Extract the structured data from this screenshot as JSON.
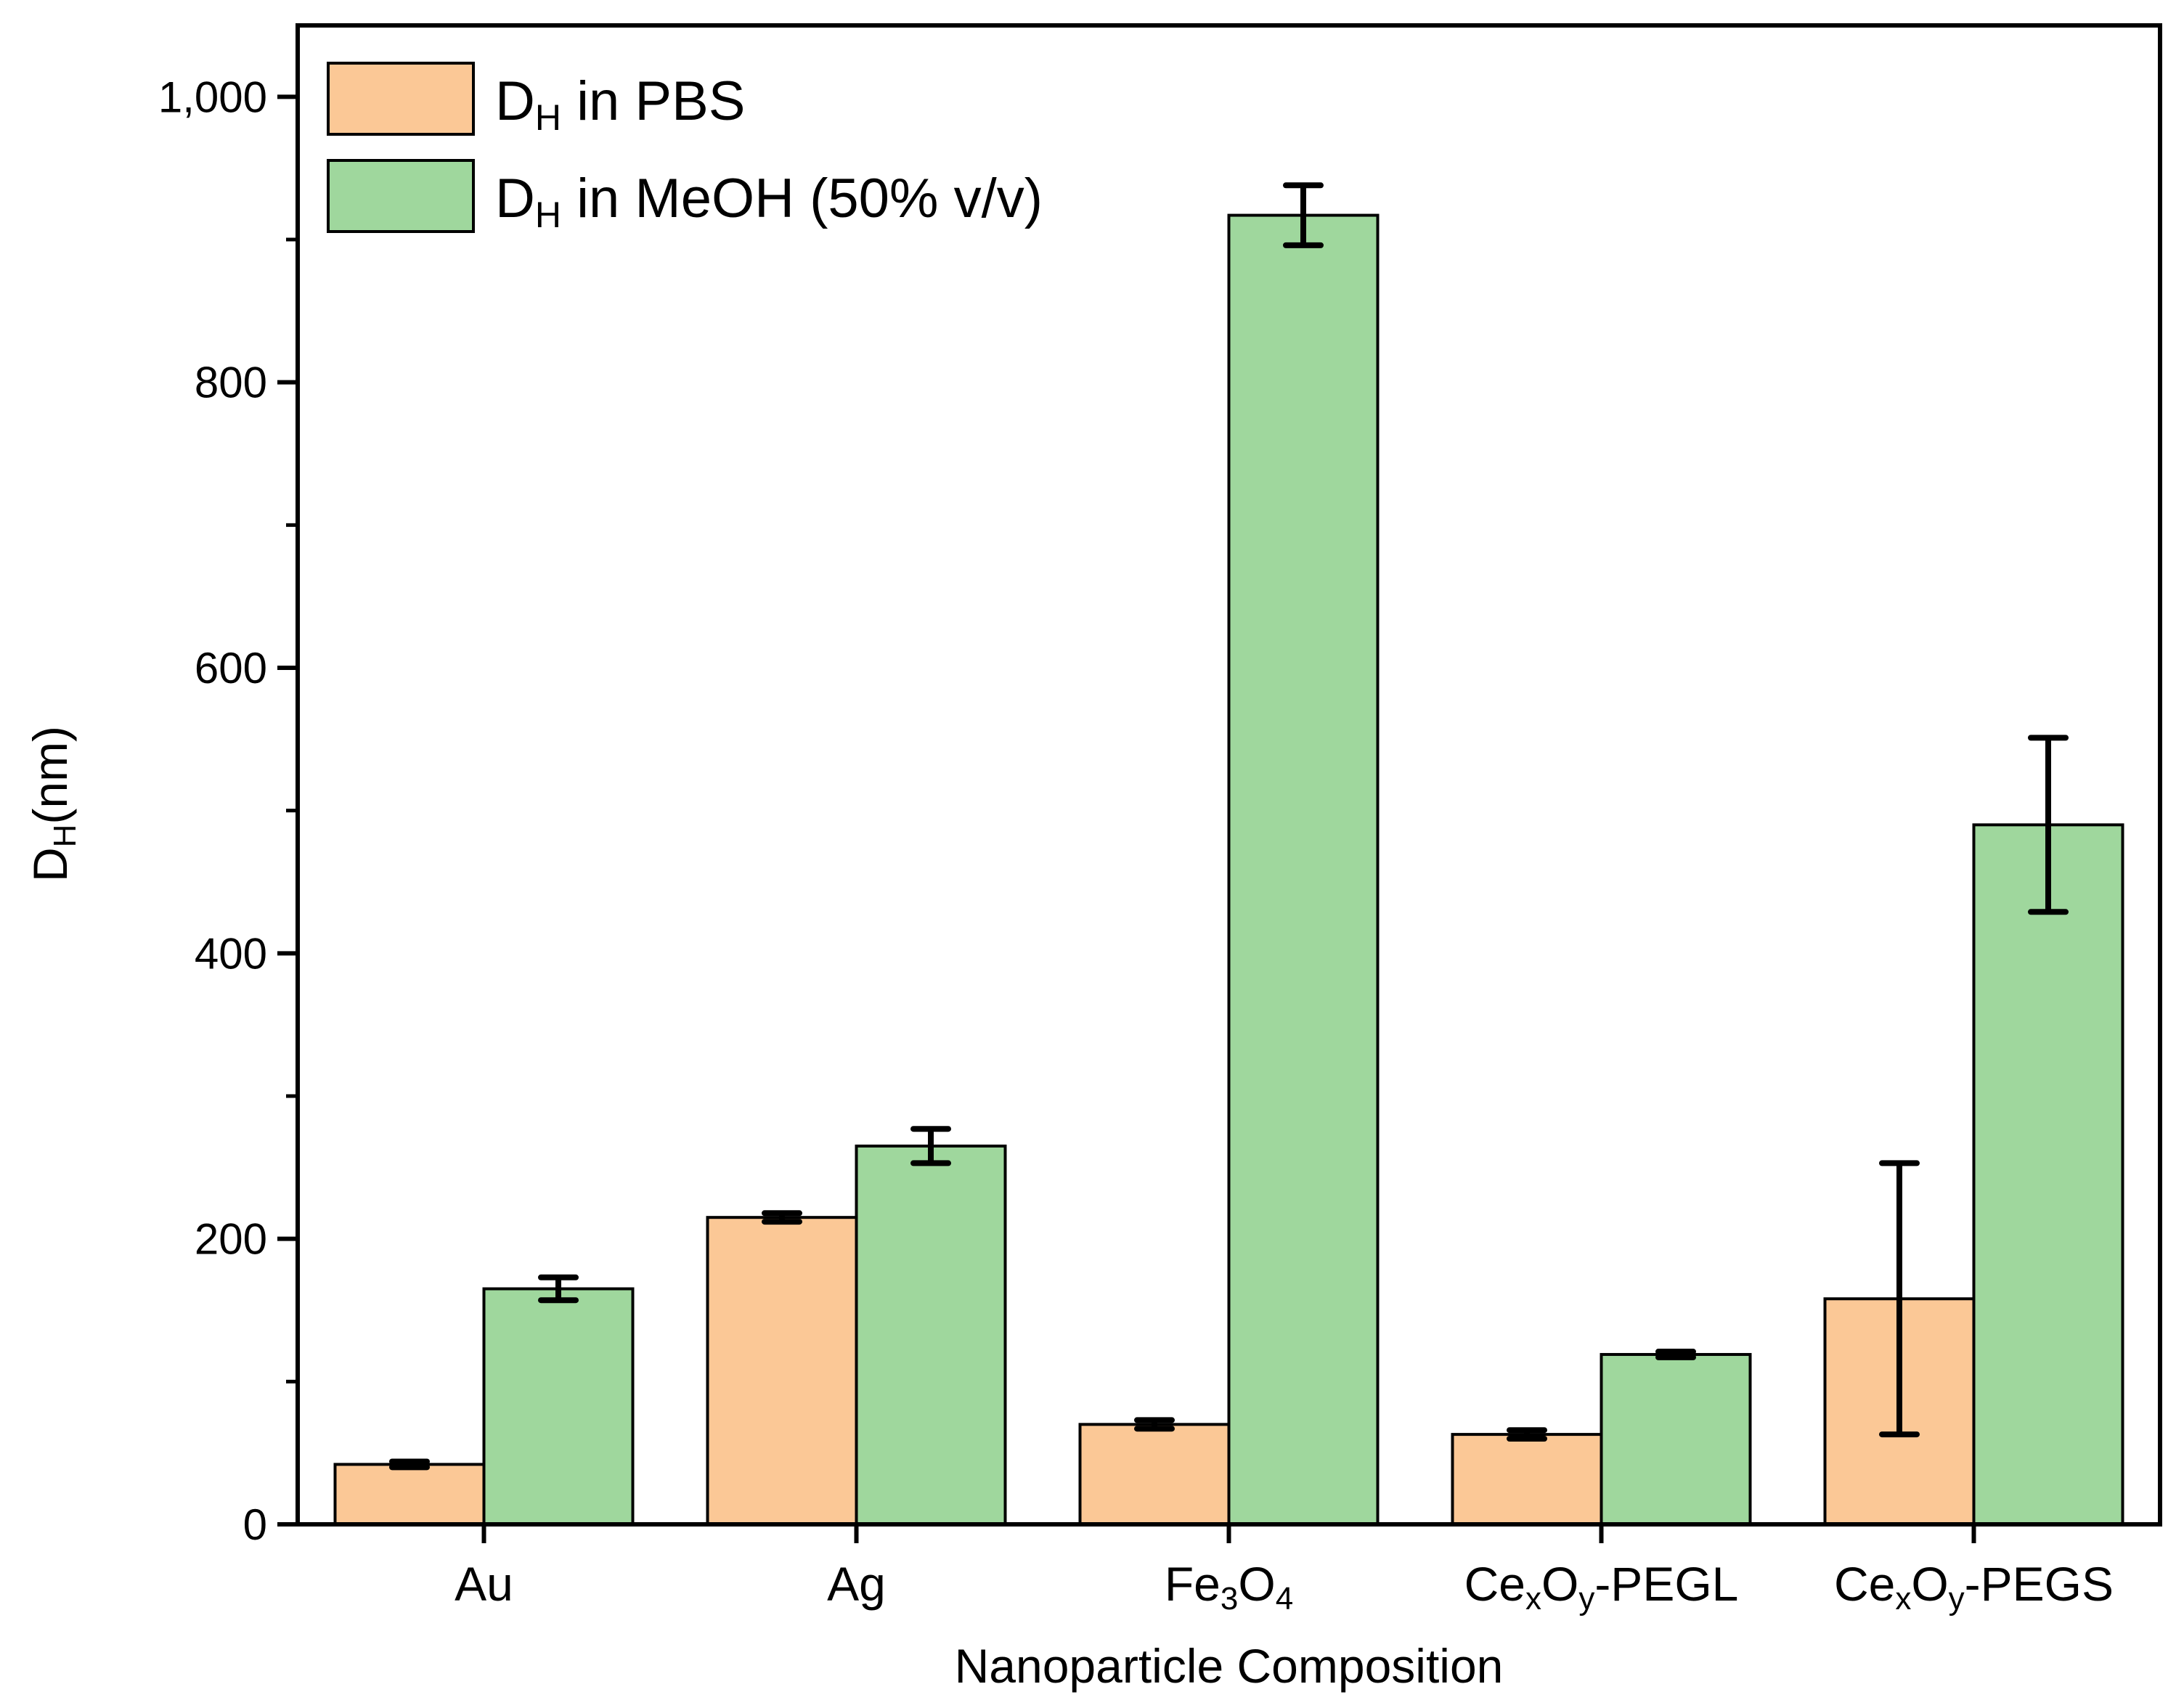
{
  "chart_data": {
    "type": "bar",
    "categories": [
      {
        "base": "Au",
        "parts": [
          {
            "t": "Au",
            "s": ""
          }
        ]
      },
      {
        "base": "Ag",
        "parts": [
          {
            "t": "Ag",
            "s": ""
          }
        ]
      },
      {
        "base": "Fe3O4",
        "parts": [
          {
            "t": "Fe",
            "s": ""
          },
          {
            "t": "3",
            "s": "sub"
          },
          {
            "t": "O",
            "s": ""
          },
          {
            "t": "4",
            "s": "sub"
          }
        ]
      },
      {
        "base": "CexOy-PEGL",
        "parts": [
          {
            "t": "Ce",
            "s": ""
          },
          {
            "t": "x",
            "s": "sub"
          },
          {
            "t": "O",
            "s": ""
          },
          {
            "t": "y",
            "s": "sub"
          },
          {
            "t": "-PEGL",
            "s": ""
          }
        ]
      },
      {
        "base": "CexOy-PEGS",
        "parts": [
          {
            "t": "Ce",
            "s": ""
          },
          {
            "t": "x",
            "s": "sub"
          },
          {
            "t": "O",
            "s": ""
          },
          {
            "t": "y",
            "s": "sub"
          },
          {
            "t": "-PEGS",
            "s": ""
          }
        ]
      }
    ],
    "series": [
      {
        "name": "DH in PBS",
        "label_parts": [
          {
            "t": "D",
            "s": ""
          },
          {
            "t": "H",
            "s": "sub"
          },
          {
            "t": " in PBS",
            "s": ""
          }
        ],
        "color": "#fbc896",
        "values": [
          42,
          215,
          70,
          63,
          158
        ],
        "errors": [
          2,
          3,
          3,
          3,
          95
        ]
      },
      {
        "name": "DH in MeOH (50% v/v)",
        "label_parts": [
          {
            "t": "D",
            "s": ""
          },
          {
            "t": "H",
            "s": "sub"
          },
          {
            "t": " in MeOH (50% v/v)",
            "s": ""
          }
        ],
        "color": "#9fd79d",
        "values": [
          165,
          265,
          917,
          119,
          490
        ],
        "errors": [
          8,
          12,
          21,
          2,
          61
        ]
      }
    ],
    "xlabel": "Nanoparticle Composition",
    "ylabel_parts": [
      {
        "t": "D",
        "s": ""
      },
      {
        "t": "H",
        "s": "sub"
      },
      {
        "t": "(nm)",
        "s": ""
      }
    ],
    "ylim": [
      0,
      1050
    ],
    "yticks_major": [
      0,
      200,
      400,
      600,
      800,
      1000
    ],
    "ytick_labels": [
      "0",
      "200",
      "400",
      "600",
      "800",
      "1,000"
    ],
    "yticks_minor": [
      100,
      300,
      500,
      700,
      900
    ],
    "legend_position": "top-left",
    "grid": false
  }
}
